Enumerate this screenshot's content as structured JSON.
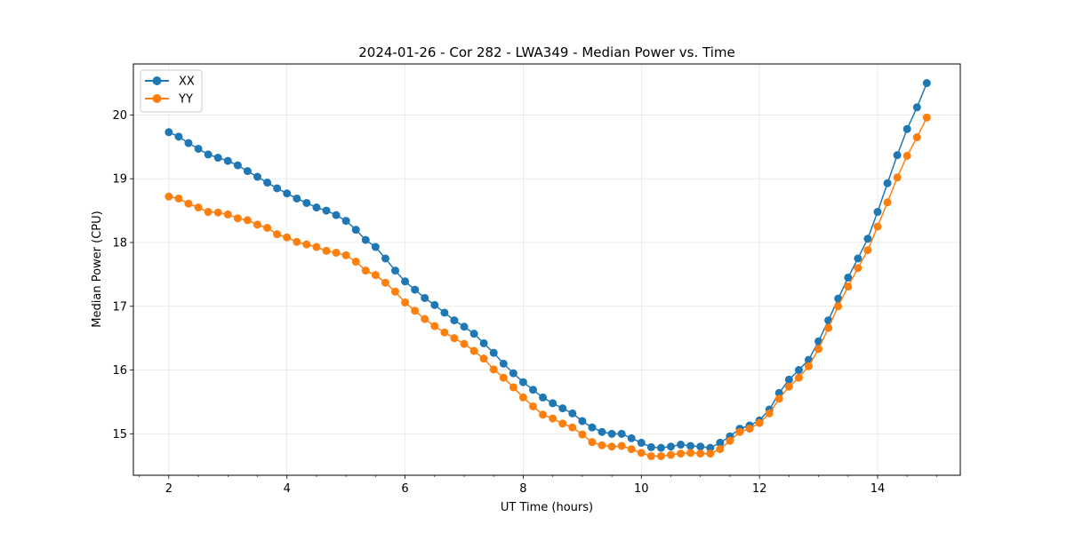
{
  "chart_data": {
    "type": "line",
    "title": "2024-01-26 - Cor 282 - LWA349 - Median Power vs. Time",
    "xlabel": "UT Time (hours)",
    "ylabel": "Median Power (CPU)",
    "xlim": [
      1.4,
      15.4
    ],
    "ylim": [
      14.35,
      20.8
    ],
    "xticks": [
      2,
      4,
      6,
      8,
      10,
      12,
      14
    ],
    "xtick_labels": [
      "2",
      "4",
      "6",
      "8",
      "10",
      "12",
      "14"
    ],
    "yticks": [
      15,
      16,
      17,
      18,
      19,
      20
    ],
    "ytick_labels": [
      "15",
      "16",
      "17",
      "18",
      "19",
      "20"
    ],
    "grid": true,
    "legend_position": "top-left",
    "series": [
      {
        "name": "XX",
        "color": "#1f77b4",
        "x": [
          2.0,
          2.167,
          2.333,
          2.5,
          2.667,
          2.833,
          3.0,
          3.167,
          3.333,
          3.5,
          3.667,
          3.833,
          4.0,
          4.167,
          4.333,
          4.5,
          4.667,
          4.833,
          5.0,
          5.167,
          5.333,
          5.5,
          5.667,
          5.833,
          6.0,
          6.167,
          6.333,
          6.5,
          6.667,
          6.833,
          7.0,
          7.167,
          7.333,
          7.5,
          7.667,
          7.833,
          8.0,
          8.167,
          8.333,
          8.5,
          8.667,
          8.833,
          9.0,
          9.167,
          9.333,
          9.5,
          9.667,
          9.833,
          10.0,
          10.167,
          10.333,
          10.5,
          10.667,
          10.833,
          11.0,
          11.167,
          11.333,
          11.5,
          11.667,
          11.833,
          12.0,
          12.167,
          12.333,
          12.5,
          12.667,
          12.833,
          13.0,
          13.167,
          13.333,
          13.5,
          13.667,
          13.833,
          14.0,
          14.167,
          14.333,
          14.5,
          14.667,
          14.833
        ],
        "y": [
          19.73,
          19.66,
          19.56,
          19.47,
          19.38,
          19.33,
          19.28,
          19.21,
          19.12,
          19.03,
          18.94,
          18.85,
          18.77,
          18.69,
          18.62,
          18.55,
          18.5,
          18.43,
          18.34,
          18.2,
          18.04,
          17.93,
          17.75,
          17.56,
          17.39,
          17.26,
          17.13,
          17.02,
          16.9,
          16.78,
          16.68,
          16.57,
          16.42,
          16.27,
          16.1,
          15.95,
          15.81,
          15.69,
          15.57,
          15.48,
          15.4,
          15.32,
          15.2,
          15.1,
          15.03,
          15.0,
          15.0,
          14.93,
          14.86,
          14.79,
          14.78,
          14.8,
          14.83,
          14.81,
          14.8,
          14.78,
          14.86,
          14.96,
          15.08,
          15.13,
          15.21,
          15.38,
          15.64,
          15.85,
          16.0,
          16.16,
          16.45,
          16.78,
          17.12,
          17.45,
          17.75,
          18.06,
          18.48,
          18.93,
          19.37,
          19.78,
          20.12,
          20.5
        ]
      },
      {
        "name": "YY",
        "color": "#ff7f0e",
        "x": [
          2.0,
          2.167,
          2.333,
          2.5,
          2.667,
          2.833,
          3.0,
          3.167,
          3.333,
          3.5,
          3.667,
          3.833,
          4.0,
          4.167,
          4.333,
          4.5,
          4.667,
          4.833,
          5.0,
          5.167,
          5.333,
          5.5,
          5.667,
          5.833,
          6.0,
          6.167,
          6.333,
          6.5,
          6.667,
          6.833,
          7.0,
          7.167,
          7.333,
          7.5,
          7.667,
          7.833,
          8.0,
          8.167,
          8.333,
          8.5,
          8.667,
          8.833,
          9.0,
          9.167,
          9.333,
          9.5,
          9.667,
          9.833,
          10.0,
          10.167,
          10.333,
          10.5,
          10.667,
          10.833,
          11.0,
          11.167,
          11.333,
          11.5,
          11.667,
          11.833,
          12.0,
          12.167,
          12.333,
          12.5,
          12.667,
          12.833,
          13.0,
          13.167,
          13.333,
          13.5,
          13.667,
          13.833,
          14.0,
          14.167,
          14.333,
          14.5,
          14.667,
          14.833
        ],
        "y": [
          18.72,
          18.69,
          18.61,
          18.55,
          18.48,
          18.47,
          18.44,
          18.38,
          18.35,
          18.28,
          18.23,
          18.13,
          18.08,
          18.01,
          17.97,
          17.93,
          17.87,
          17.84,
          17.8,
          17.7,
          17.56,
          17.49,
          17.37,
          17.23,
          17.06,
          16.93,
          16.8,
          16.69,
          16.59,
          16.5,
          16.41,
          16.3,
          16.18,
          16.01,
          15.88,
          15.73,
          15.57,
          15.43,
          15.3,
          15.24,
          15.16,
          15.1,
          14.99,
          14.87,
          14.82,
          14.8,
          14.81,
          14.76,
          14.7,
          14.65,
          14.65,
          14.67,
          14.69,
          14.7,
          14.69,
          14.69,
          14.76,
          14.89,
          15.03,
          15.08,
          15.17,
          15.32,
          15.55,
          15.74,
          15.88,
          16.06,
          16.33,
          16.66,
          17.0,
          17.31,
          17.6,
          17.88,
          18.25,
          18.63,
          19.02,
          19.36,
          19.65,
          19.96
        ]
      }
    ]
  }
}
